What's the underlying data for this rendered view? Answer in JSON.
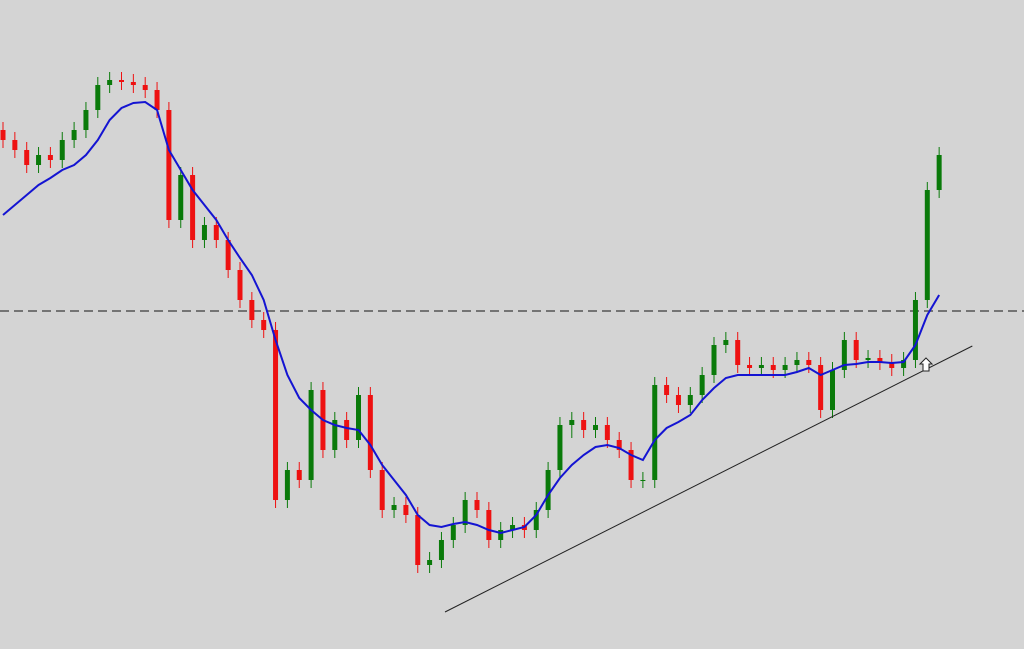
{
  "chart_data": {
    "type": "candlestick",
    "ylim": [
      51,
      700
    ],
    "background": "#d4d4d4",
    "up_color": "#0a7a0a",
    "down_color": "#ee1111",
    "open": [
      570,
      560,
      550,
      535,
      545,
      540,
      560,
      570,
      590,
      615,
      620,
      618,
      615,
      610,
      590,
      480,
      525,
      460,
      475,
      460,
      430,
      400,
      380,
      370,
      200,
      230,
      220,
      310,
      250,
      280,
      260,
      305,
      230,
      190,
      195,
      185,
      135,
      140,
      160,
      175,
      200,
      190,
      160,
      170,
      175,
      170,
      190,
      230,
      275,
      280,
      270,
      275,
      260,
      250,
      220,
      220,
      315,
      305,
      295,
      305,
      325,
      355,
      360,
      335,
      332,
      335,
      330,
      335,
      340,
      335,
      290,
      330,
      360,
      340,
      342,
      338,
      332,
      340,
      400,
      510
    ],
    "high": [
      578,
      568,
      558,
      553,
      553,
      568,
      578,
      598,
      623,
      628,
      628,
      626,
      623,
      618,
      598,
      533,
      533,
      483,
      483,
      468,
      438,
      408,
      388,
      378,
      238,
      238,
      318,
      318,
      288,
      288,
      313,
      313,
      238,
      203,
      203,
      193,
      148,
      168,
      183,
      208,
      208,
      198,
      178,
      183,
      183,
      198,
      238,
      283,
      288,
      288,
      283,
      283,
      268,
      258,
      228,
      323,
      323,
      313,
      313,
      333,
      363,
      368,
      368,
      343,
      343,
      343,
      343,
      348,
      348,
      343,
      338,
      368,
      368,
      350,
      350,
      346,
      348,
      408,
      518,
      553
    ],
    "low": [
      552,
      542,
      527,
      527,
      532,
      532,
      552,
      562,
      582,
      607,
      610,
      607,
      602,
      582,
      472,
      472,
      452,
      452,
      452,
      422,
      392,
      372,
      362,
      192,
      192,
      212,
      212,
      242,
      242,
      252,
      252,
      222,
      182,
      182,
      177,
      127,
      127,
      132,
      152,
      167,
      182,
      152,
      152,
      162,
      162,
      162,
      182,
      222,
      262,
      262,
      262,
      252,
      242,
      212,
      212,
      212,
      297,
      287,
      287,
      297,
      317,
      347,
      327,
      324,
      324,
      322,
      322,
      327,
      327,
      282,
      282,
      322,
      332,
      332,
      330,
      324,
      324,
      332,
      392,
      502
    ],
    "close": [
      560,
      550,
      535,
      545,
      540,
      560,
      570,
      590,
      615,
      620,
      618,
      615,
      610,
      590,
      480,
      525,
      460,
      475,
      460,
      430,
      400,
      380,
      370,
      200,
      230,
      220,
      310,
      250,
      280,
      260,
      305,
      230,
      190,
      195,
      185,
      135,
      140,
      160,
      175,
      200,
      190,
      160,
      170,
      175,
      170,
      190,
      230,
      275,
      280,
      270,
      275,
      260,
      250,
      220,
      220,
      315,
      305,
      295,
      305,
      325,
      355,
      360,
      335,
      332,
      335,
      330,
      335,
      340,
      335,
      290,
      330,
      360,
      340,
      342,
      338,
      332,
      340,
      400,
      510,
      545
    ],
    "ma": {
      "color": "#1414d2",
      "values": [
        485,
        495,
        505,
        515,
        522,
        530,
        535,
        545,
        560,
        580,
        592,
        597,
        598,
        590,
        550,
        530,
        510,
        495,
        480,
        460,
        442,
        425,
        400,
        360,
        325,
        302,
        290,
        280,
        275,
        272,
        270,
        255,
        235,
        220,
        205,
        185,
        175,
        173,
        176,
        178,
        175,
        170,
        167,
        170,
        173,
        185,
        205,
        222,
        235,
        245,
        253,
        255,
        252,
        245,
        240,
        260,
        272,
        278,
        285,
        300,
        312,
        322,
        325,
        325,
        325,
        325,
        325,
        328,
        332,
        325,
        330,
        335,
        336,
        338,
        338,
        337,
        338,
        355,
        385,
        405
      ]
    },
    "hline": {
      "value": 389,
      "color": "#555555"
    },
    "trendline": {
      "x": [
        37.3,
        81.8
      ],
      "values": [
        88,
        354
      ],
      "color": "#222222"
    }
  }
}
